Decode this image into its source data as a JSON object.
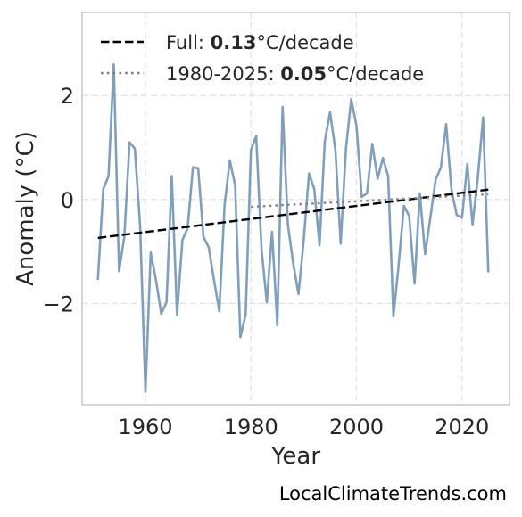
{
  "chart_data": {
    "type": "line",
    "xlabel": "Year",
    "ylabel": "Anomaly (°C)",
    "xlim": [
      1948,
      2029
    ],
    "ylim": [
      -3.95,
      3.6
    ],
    "xticks": [
      1960,
      1980,
      2000,
      2020
    ],
    "yticks": [
      -2,
      0,
      2
    ],
    "ytick_labels": [
      "−2",
      "0",
      "2"
    ],
    "grid": true,
    "legend_position": "top-left",
    "series": [
      {
        "type": "line",
        "color": "#7f9fbf",
        "x": [
          1951,
          1952,
          1953,
          1954,
          1955,
          1956,
          1957,
          1958,
          1959,
          1960,
          1961,
          1962,
          1963,
          1964,
          1965,
          1966,
          1967,
          1968,
          1969,
          1970,
          1971,
          1972,
          1973,
          1974,
          1975,
          1976,
          1977,
          1978,
          1979,
          1980,
          1981,
          1982,
          1983,
          1984,
          1985,
          1986,
          1987,
          1988,
          1989,
          1990,
          1991,
          1992,
          1993,
          1994,
          1995,
          1996,
          1997,
          1998,
          1999,
          2000,
          2001,
          2002,
          2003,
          2004,
          2005,
          2006,
          2007,
          2008,
          2009,
          2010,
          2011,
          2012,
          2013,
          2014,
          2015,
          2016,
          2017,
          2018,
          2019,
          2020,
          2021,
          2022,
          2023,
          2024,
          2025
        ],
        "values": [
          -1.55,
          0.2,
          0.45,
          2.6,
          -1.38,
          -0.72,
          1.1,
          0.98,
          -0.5,
          -3.7,
          -1.02,
          -1.55,
          -2.2,
          -1.98,
          0.45,
          -2.22,
          -0.78,
          -0.55,
          0.62,
          0.6,
          -0.72,
          -0.92,
          -1.55,
          -2.15,
          -0.1,
          0.75,
          0.28,
          -2.65,
          -2.22,
          0.95,
          1.22,
          -0.95,
          -1.98,
          -0.62,
          -2.42,
          1.78,
          -0.48,
          -1.22,
          -1.82,
          -0.78,
          0.5,
          0.2,
          -0.88,
          1.12,
          1.68,
          0.95,
          -0.85,
          0.98,
          1.93,
          1.42,
          0.05,
          0.12,
          1.07,
          0.4,
          0.8,
          0.45,
          -2.25,
          -1.25,
          -0.12,
          -0.32,
          -1.62,
          0.12,
          -1.05,
          -0.35,
          0.38,
          0.62,
          1.45,
          0.18,
          -0.3,
          -0.35,
          0.68,
          -0.48,
          0.42,
          1.58,
          -1.4
        ]
      },
      {
        "type": "trend",
        "style": "dashed",
        "color": "#000000",
        "x": [
          1951,
          2025
        ],
        "values": [
          -0.74,
          0.19
        ]
      },
      {
        "type": "trend",
        "style": "dotted",
        "color": "#808080",
        "x": [
          1980,
          2025
        ],
        "values": [
          -0.14,
          0.1
        ]
      }
    ],
    "legend": [
      {
        "prefix": "Full: ",
        "value": "0.13",
        "suffix": "°C/decade",
        "style": "dashed",
        "color": "#000000"
      },
      {
        "prefix": "1980-2025: ",
        "value": "0.05",
        "suffix": "°C/decade",
        "style": "dotted",
        "color": "#808080"
      }
    ]
  },
  "attribution": "LocalClimateTrends.com"
}
